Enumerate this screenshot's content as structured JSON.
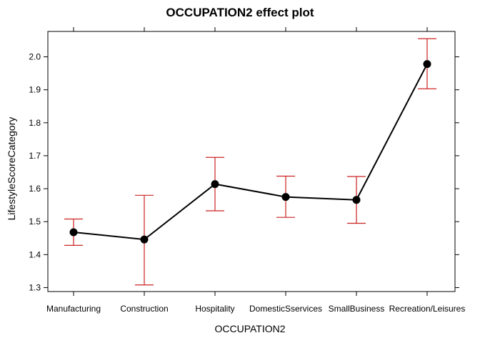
{
  "chart_data": {
    "type": "line",
    "title": "OCCUPATION2 effect plot",
    "xlabel": "OCCUPATION2",
    "ylabel": "LifestyleScoreCategory",
    "categories": [
      "Manufacturing",
      "Construction",
      "Hospitality",
      "DomesticSservices",
      "SmallBusiness",
      "Recreation/Leisures"
    ],
    "series": [
      {
        "values": [
          1.468,
          1.446,
          1.614,
          1.575,
          1.566,
          1.978
        ],
        "lower": [
          1.428,
          1.308,
          1.533,
          1.513,
          1.495,
          1.903
        ],
        "upper": [
          1.508,
          1.58,
          1.695,
          1.638,
          1.637,
          2.055
        ]
      }
    ],
    "yticks": [
      1.3,
      1.4,
      1.5,
      1.6,
      1.7,
      1.8,
      1.9,
      2.0
    ],
    "ytick_labels": [
      "1.3",
      "1.4",
      "1.5",
      "1.6",
      "1.7",
      "1.8",
      "1.9",
      "2.0"
    ],
    "ylim": [
      1.288,
      2.077
    ],
    "grid": false,
    "colors": {
      "line": "#000000",
      "point": "#000000",
      "error_bar": "#cc2222"
    }
  }
}
